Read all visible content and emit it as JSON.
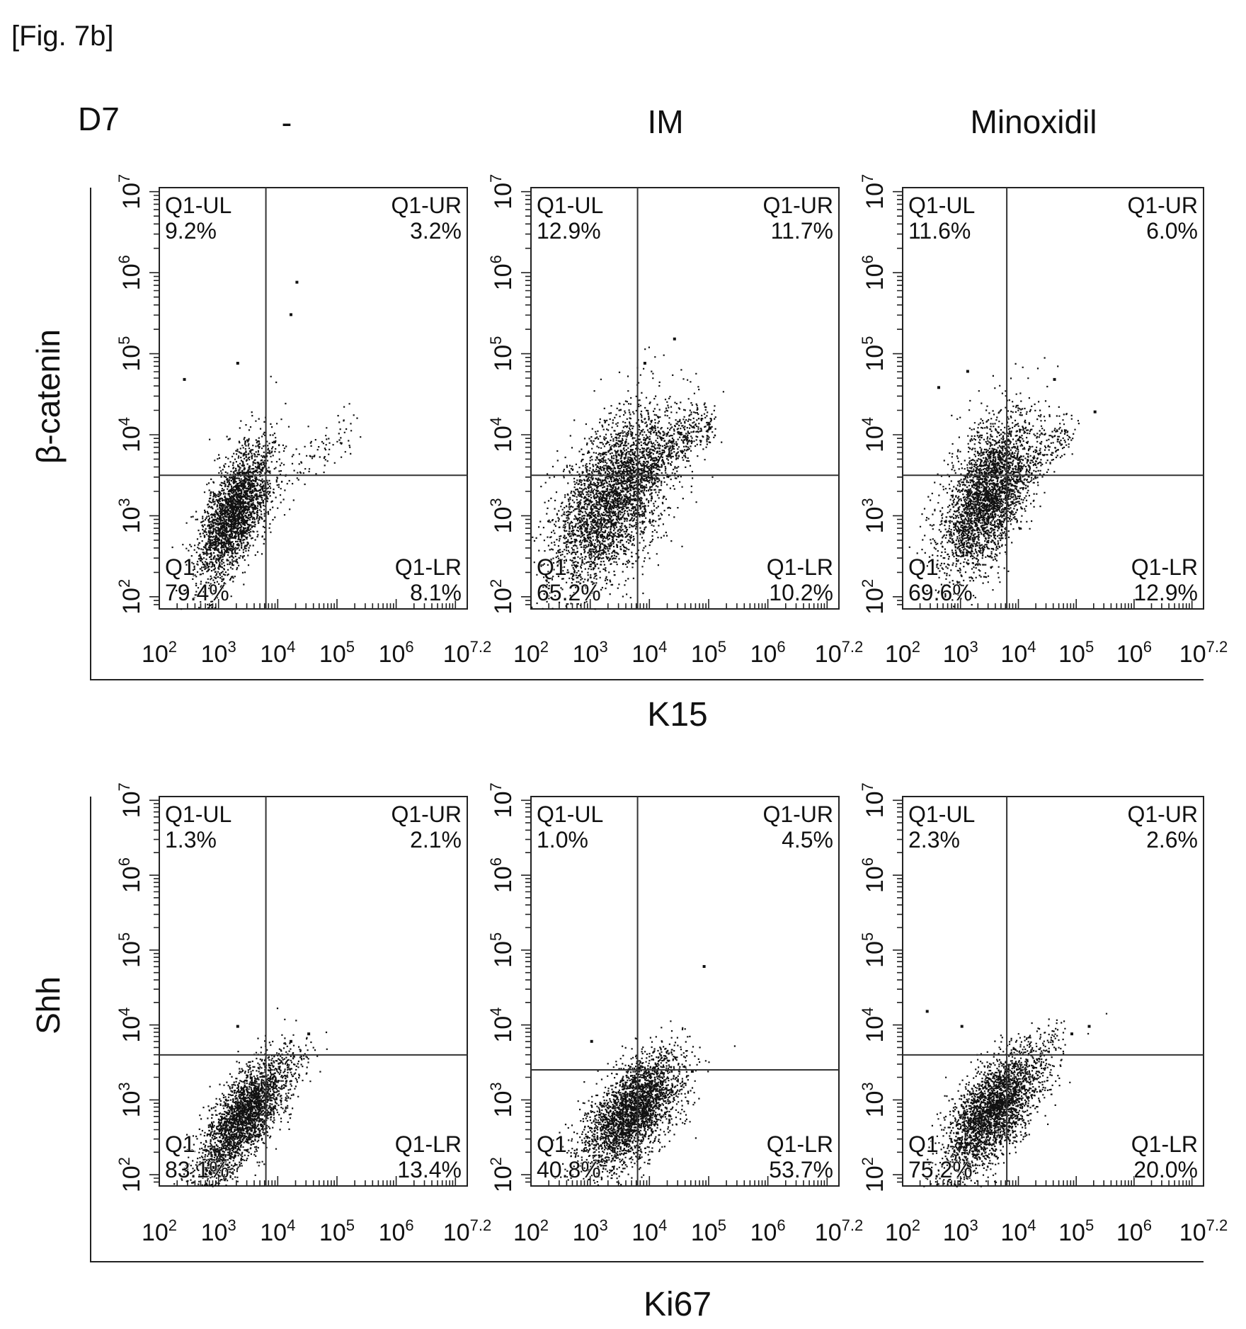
{
  "figure": {
    "label": "[Fig. 7b]",
    "day": "D7",
    "columns": [
      "-",
      "IM",
      "Minoxidil"
    ]
  },
  "chart_data": [
    {
      "type": "scatter",
      "row_label": "β-catenin",
      "xlabel": "K15",
      "x_scale": "log",
      "y_scale": "log",
      "x_ticks": [
        {
          "v": 2,
          "label": "10",
          "sup": "2"
        },
        {
          "v": 3,
          "label": "10",
          "sup": "3"
        },
        {
          "v": 4,
          "label": "10",
          "sup": "4"
        },
        {
          "v": 5,
          "label": "10",
          "sup": "5"
        },
        {
          "v": 6,
          "label": "10",
          "sup": "6"
        },
        {
          "v": 7.2,
          "label": "10",
          "sup": "7.2"
        }
      ],
      "y_ticks": [
        {
          "v": 2,
          "label": "10",
          "sup": "2"
        },
        {
          "v": 3,
          "label": "10",
          "sup": "3"
        },
        {
          "v": 4,
          "label": "10",
          "sup": "4"
        },
        {
          "v": 5,
          "label": "10",
          "sup": "5"
        },
        {
          "v": 6,
          "label": "10",
          "sup": "6"
        },
        {
          "v": 7,
          "label": "10",
          "sup": "7"
        }
      ],
      "panels": [
        {
          "condition": "-",
          "gate": {
            "x": 3.8,
            "y": 3.5
          },
          "quadrants": {
            "UL": {
              "name": "Q1-UL",
              "value": "9.2%"
            },
            "UR": {
              "name": "Q1-UR",
              "value": "3.2%"
            },
            "LL": {
              "name": "Q1",
              "value": "79.4%"
            },
            "LR": {
              "name": "Q1-LR",
              "value": "8.1%"
            }
          },
          "cloud": {
            "cx": 3.25,
            "cy": 3.05,
            "sx": 0.3,
            "sy": 0.42,
            "rho": 0.62,
            "n": 2600,
            "seed": 11
          },
          "tail": {
            "x0": 3.6,
            "y0": 3.1,
            "x1": 5.3,
            "y1": 4.2,
            "n": 140
          },
          "outliers": [
            [
              4.3,
              5.9
            ],
            [
              4.2,
              5.5
            ],
            [
              3.3,
              4.9
            ],
            [
              2.4,
              4.7
            ]
          ]
        },
        {
          "condition": "IM",
          "gate": {
            "x": 3.8,
            "y": 3.5
          },
          "quadrants": {
            "UL": {
              "name": "Q1-UL",
              "value": "12.9%"
            },
            "UR": {
              "name": "Q1-UR",
              "value": "11.7%"
            },
            "LL": {
              "name": "Q1",
              "value": "65.2%"
            },
            "LR": {
              "name": "Q1-LR",
              "value": "10.2%"
            }
          },
          "cloud": {
            "cx": 3.35,
            "cy": 3.2,
            "sx": 0.5,
            "sy": 0.55,
            "rho": 0.55,
            "n": 3400,
            "seed": 23
          },
          "tail": {
            "x0": 3.8,
            "y0": 3.5,
            "x1": 5.0,
            "y1": 4.2,
            "n": 420
          },
          "outliers": [
            [
              4.4,
              5.2
            ],
            [
              3.9,
              4.9
            ],
            [
              5.0,
              4.1
            ]
          ]
        },
        {
          "condition": "Minoxidil",
          "gate": {
            "x": 3.8,
            "y": 3.5
          },
          "quadrants": {
            "UL": {
              "name": "Q1-UL",
              "value": "11.6%"
            },
            "UR": {
              "name": "Q1-UR",
              "value": "6.0%"
            },
            "LL": {
              "name": "Q1",
              "value": "69.6%"
            },
            "LR": {
              "name": "Q1-LR",
              "value": "12.9%"
            }
          },
          "cloud": {
            "cx": 3.45,
            "cy": 3.25,
            "sx": 0.4,
            "sy": 0.5,
            "rho": 0.55,
            "n": 3000,
            "seed": 37
          },
          "tail": {
            "x0": 3.9,
            "y0": 3.4,
            "x1": 4.9,
            "y1": 4.1,
            "n": 200
          },
          "outliers": [
            [
              3.1,
              4.8
            ],
            [
              4.6,
              4.7
            ],
            [
              5.3,
              4.3
            ],
            [
              2.6,
              4.6
            ]
          ]
        }
      ]
    },
    {
      "type": "scatter",
      "row_label": "Shh",
      "xlabel": "Ki67",
      "x_scale": "log",
      "y_scale": "log",
      "x_ticks": [
        {
          "v": 2,
          "label": "10",
          "sup": "2"
        },
        {
          "v": 3,
          "label": "10",
          "sup": "3"
        },
        {
          "v": 4,
          "label": "10",
          "sup": "4"
        },
        {
          "v": 5,
          "label": "10",
          "sup": "5"
        },
        {
          "v": 6,
          "label": "10",
          "sup": "6"
        },
        {
          "v": 7.2,
          "label": "10",
          "sup": "7.2"
        }
      ],
      "y_ticks": [
        {
          "v": 2,
          "label": "10",
          "sup": "2"
        },
        {
          "v": 3,
          "label": "10",
          "sup": "3"
        },
        {
          "v": 4,
          "label": "10",
          "sup": "4"
        },
        {
          "v": 5,
          "label": "10",
          "sup": "5"
        },
        {
          "v": 6,
          "label": "10",
          "sup": "6"
        },
        {
          "v": 7,
          "label": "10",
          "sup": "7"
        }
      ],
      "panels": [
        {
          "condition": "-",
          "gate": {
            "x": 3.8,
            "y": 3.6
          },
          "quadrants": {
            "UL": {
              "name": "Q1-UL",
              "value": "1.3%"
            },
            "UR": {
              "name": "Q1-UR",
              "value": "2.1%"
            },
            "LL": {
              "name": "Q1",
              "value": "83.1%"
            },
            "LR": {
              "name": "Q1-LR",
              "value": "13.4%"
            }
          },
          "cloud": {
            "cx": 3.4,
            "cy": 2.75,
            "sx": 0.38,
            "sy": 0.42,
            "rho": 0.72,
            "n": 2600,
            "seed": 51
          },
          "tail": {
            "x0": 3.8,
            "y0": 3.1,
            "x1": 4.5,
            "y1": 3.6,
            "n": 90
          },
          "outliers": [
            [
              4.5,
              3.9
            ],
            [
              3.3,
              4.0
            ],
            [
              4.2,
              3.8
            ]
          ]
        },
        {
          "condition": "IM",
          "gate": {
            "x": 3.8,
            "y": 3.4
          },
          "quadrants": {
            "UL": {
              "name": "Q1-UL",
              "value": "1.0%"
            },
            "UR": {
              "name": "Q1-UR",
              "value": "4.5%"
            },
            "LL": {
              "name": "Q1",
              "value": "40.8%"
            },
            "LR": {
              "name": "Q1-LR",
              "value": "53.7%"
            }
          },
          "cloud": {
            "cx": 3.7,
            "cy": 2.85,
            "sx": 0.42,
            "sy": 0.38,
            "rho": 0.6,
            "n": 2800,
            "seed": 67
          },
          "tail": {
            "x0": 3.9,
            "y0": 3.1,
            "x1": 4.3,
            "y1": 3.6,
            "n": 80
          },
          "outliers": [
            [
              4.9,
              4.8
            ],
            [
              3.0,
              3.8
            ],
            [
              4.7,
              3.4
            ]
          ]
        },
        {
          "condition": "Minoxidil",
          "gate": {
            "x": 3.8,
            "y": 3.6
          },
          "quadrants": {
            "UL": {
              "name": "Q1-UL",
              "value": "2.3%"
            },
            "UR": {
              "name": "Q1-UR",
              "value": "2.6%"
            },
            "LL": {
              "name": "Q1",
              "value": "75.2%"
            },
            "LR": {
              "name": "Q1-LR",
              "value": "20.0%"
            }
          },
          "cloud": {
            "cx": 3.55,
            "cy": 2.85,
            "sx": 0.42,
            "sy": 0.42,
            "rho": 0.65,
            "n": 2800,
            "seed": 83
          },
          "tail": {
            "x0": 3.9,
            "y0": 3.3,
            "x1": 4.7,
            "y1": 3.9,
            "n": 90
          },
          "outliers": [
            [
              5.2,
              4.0
            ],
            [
              3.0,
              4.0
            ],
            [
              2.4,
              4.2
            ],
            [
              4.9,
              3.9
            ]
          ]
        }
      ]
    }
  ]
}
